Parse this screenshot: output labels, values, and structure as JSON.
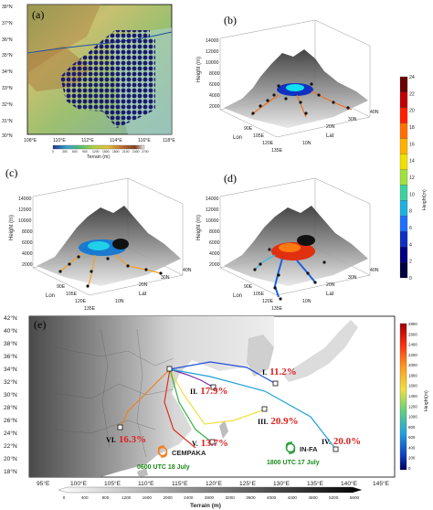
{
  "panel_a": {
    "label": "(a)",
    "lat_ticks": [
      "38°N",
      "37°N",
      "36°N",
      "35°N",
      "34°N",
      "33°N",
      "32°N",
      "31°N",
      "30°N"
    ],
    "lon_ticks": [
      "108°E",
      "110°E",
      "112°E",
      "114°E",
      "116°E",
      "118°E"
    ],
    "colorbar_ticks": [
      "0",
      "300",
      "600",
      "900",
      "1200",
      "1500",
      "1800",
      "2100",
      "2400",
      "2700"
    ],
    "colorbar_title": "Terrain (m)"
  },
  "panel_b": {
    "label": "(b)",
    "z_title": "Height (m)",
    "z_ticks": [
      "14000",
      "12000",
      "10000",
      "8000",
      "6000",
      "4000",
      "2000",
      "0"
    ],
    "lon_title": "Lon",
    "lon_ticks": [
      "90E",
      "105E",
      "120E",
      "135E"
    ],
    "lat_title": "Lat",
    "lat_ticks": [
      "10N",
      "20N",
      "30N",
      "40N"
    ]
  },
  "panel_c": {
    "label": "(c)",
    "z_title": "Height (m)",
    "z_ticks": [
      "14000",
      "12000",
      "10000",
      "8000",
      "6000",
      "4000",
      "2000",
      "0"
    ],
    "lon_title": "Lon",
    "lon_ticks": [
      "90E",
      "105E",
      "120E",
      "135E"
    ],
    "lat_title": "Lat",
    "lat_ticks": [
      "10N",
      "20N",
      "30N",
      "40N"
    ]
  },
  "panel_d": {
    "label": "(d)",
    "z_title": "Height (m)",
    "z_ticks": [
      "14000",
      "12000",
      "10000",
      "8000",
      "6000",
      "4000",
      "2000",
      "0"
    ],
    "lon_title": "Lon",
    "lon_ticks": [
      "90E",
      "105E",
      "120E",
      "135E"
    ],
    "lat_title": "Lat",
    "lat_ticks": [
      "10N",
      "20N",
      "30N",
      "40N"
    ]
  },
  "traj_colorbar": {
    "title": "Height(m)",
    "ticks": [
      "24",
      "22",
      "20",
      "18",
      "16",
      "14",
      "12",
      "10",
      "8",
      "6",
      "4",
      "2",
      "0"
    ],
    "ramp": [
      "#6a0000",
      "#c00000",
      "#ff2000",
      "#ff7000",
      "#ffb000",
      "#f0e000",
      "#a0e040",
      "#40d0a0",
      "#20b0e0",
      "#2070ff",
      "#1030c0",
      "#000080",
      "#000040"
    ]
  },
  "panel_e": {
    "label": "(e)",
    "lat_ticks": [
      "42°N",
      "40°N",
      "38°N",
      "36°N",
      "34°N",
      "32°N",
      "30°N",
      "28°N",
      "26°N",
      "24°N",
      "22°N",
      "20°N",
      "18°N"
    ],
    "lon_ticks": [
      "95°E",
      "100°E",
      "105°E",
      "110°E",
      "115°E",
      "120°E",
      "125°E",
      "130°E",
      "135°E",
      "140°E",
      "145°E"
    ],
    "clusters": [
      {
        "id": "I.",
        "pct": "11.2%",
        "color": "#1f4fd8"
      },
      {
        "id": "II.",
        "pct": "17.9%",
        "color": "#7a30a0"
      },
      {
        "id": "III.",
        "pct": "20.9%",
        "color": "#f0e040"
      },
      {
        "id": "IV.",
        "pct": "20.0%",
        "color": "#1ea0d8"
      },
      {
        "id": "V.",
        "pct": "13.7%",
        "color": "#30b040"
      },
      {
        "id": "VI.",
        "pct": "16.3%",
        "color": "#f08020"
      }
    ],
    "storm_1": {
      "name": "CEMPAKA",
      "time": "0600 UTC 18 July"
    },
    "storm_2": {
      "name": "IN-FA",
      "time": "1800 UTC 17 July"
    },
    "right_colorbar_ticks": [
      "2800",
      "2600",
      "2400",
      "2200",
      "2000",
      "1800",
      "1600",
      "1400",
      "1200",
      "1000",
      "800",
      "600",
      "400",
      "200",
      "0"
    ],
    "right_colorbar_title": "Height(m)"
  },
  "bottom_colorbar": {
    "ticks": [
      "0",
      "400",
      "800",
      "1200",
      "1600",
      "2000",
      "2400",
      "2800",
      "3200",
      "3600",
      "4000",
      "4400",
      "4800",
      "5200",
      "5600"
    ],
    "title": "Terrain (m)"
  }
}
